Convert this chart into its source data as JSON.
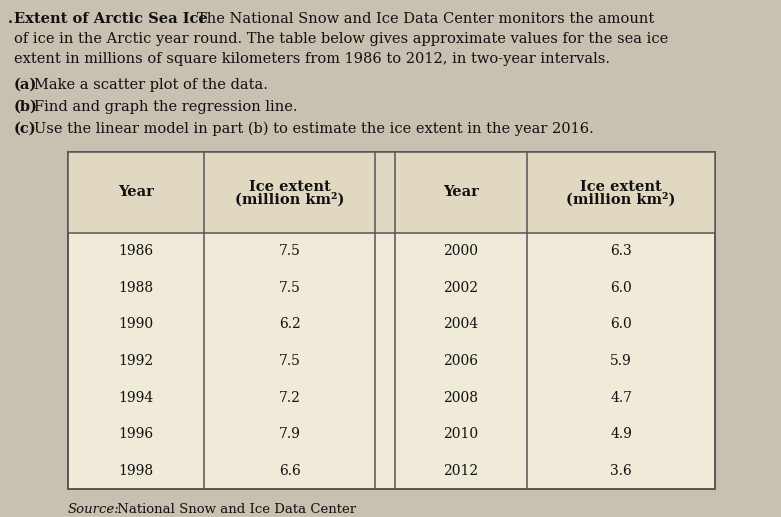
{
  "title_bold": ". Extent of Arctic Sea Ice",
  "title_normal_1": "  The National Snow and Ice Data Center monitors the amount",
  "title_line2": "of ice in the Arctic year round. The table below gives approximate values for the sea ice",
  "title_line3": "extent in millions of square kilometers from 1986 to 2012, in two-year intervals.",
  "item_a_bold": "(a)",
  "item_a_text": "  Make a scatter plot of the data.",
  "item_b_bold": "(b)",
  "item_b_text": "  Find and graph the regression line.",
  "item_c_bold": "(c)",
  "item_c_text": "  Use the linear model in part (b) to estimate the ice extent in the year 2016.",
  "col_headers": [
    "Year",
    "Ice extent\n(million km²)",
    "Year",
    "Ice extent\n(million km²)"
  ],
  "left_years": [
    "1986",
    "1988",
    "1990",
    "1992",
    "1994",
    "1996",
    "1998"
  ],
  "left_extents": [
    "7.5",
    "7.5",
    "6.2",
    "7.5",
    "7.2",
    "7.9",
    "6.6"
  ],
  "right_years": [
    "2000",
    "2002",
    "2004",
    "2006",
    "2008",
    "2010",
    "2012"
  ],
  "right_extents": [
    "6.3",
    "6.0",
    "6.0",
    "5.9",
    "4.7",
    "4.9",
    "3.6"
  ],
  "source_italic": "Source:",
  "source_normal": " National Snow and Ice Data Center",
  "bg_color": "#c8c0b0",
  "table_bg": "#f0ebd8",
  "header_bg": "#e0d8c0",
  "text_color": "#111111",
  "font_size_body": 10.5,
  "font_size_table": 10.0,
  "font_size_source": 9.5
}
